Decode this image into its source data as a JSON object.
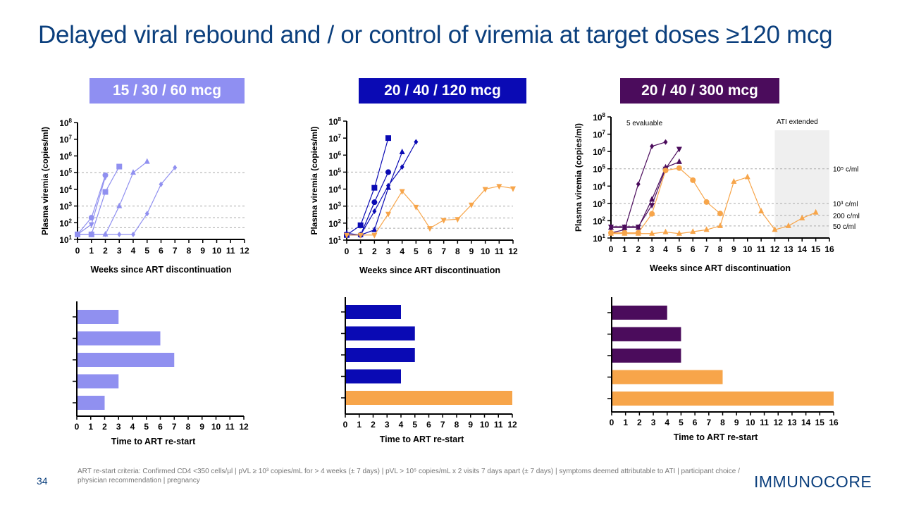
{
  "title": "Delayed viral rebound and / or control of viremia at target doses ≥120 mcg",
  "page_number": "34",
  "footnote": "ART re-start criteria: Confirmed CD4 <350 cells/µl | pVL ≥ 10³ copies/mL for > 4 weeks (± 7 days) | pVL > 10⁵ copies/mL x 2 visits 7 days apart (± 7 days) | symptoms deemed attributable to ATI | participant choice / physician recommendation | pregnancy",
  "logo": "IMMUNOCORE",
  "colors": {
    "low": "#9090f0",
    "mid": "#0a0ab4",
    "high": "#4b0c5c",
    "control": "#f7a54a"
  },
  "chart_data": [
    {
      "type": "line",
      "title": "15 / 30 / 60 mcg",
      "xlabel": "Weeks since ART discontinuation",
      "ylabel": "Plasma viremia (copies/ml)",
      "yscale": "log",
      "ylim": [
        10,
        100000000
      ],
      "xlim": [
        0,
        12
      ],
      "xticks": [
        "0",
        "1",
        "2",
        "3",
        "4",
        "5",
        "6",
        "7",
        "8",
        "9",
        "10",
        "11",
        "12"
      ],
      "yticks": [
        "10¹",
        "10²",
        "10³",
        "10⁴",
        "10⁵",
        "10⁶",
        "10⁷",
        "10⁸"
      ],
      "reference_lines": [
        100000,
        1000,
        200,
        50
      ],
      "series": [
        {
          "marker": "circle",
          "color": "low",
          "x": [
            0,
            1,
            2
          ],
          "y": [
            20,
            200,
            70000
          ]
        },
        {
          "marker": "triangle-down",
          "color": "low",
          "x": [
            0,
            1,
            2
          ],
          "y": [
            20,
            80,
            55000
          ]
        },
        {
          "marker": "square",
          "color": "low",
          "x": [
            0,
            1,
            2,
            3
          ],
          "y": [
            20,
            20,
            7000,
            230000
          ]
        },
        {
          "marker": "triangle",
          "color": "low",
          "x": [
            0,
            1,
            2,
            3,
            4,
            5
          ],
          "y": [
            20,
            20,
            20,
            1000,
            100000,
            450000
          ]
        },
        {
          "marker": "diamond",
          "color": "low",
          "x": [
            0,
            1,
            2,
            3,
            4,
            5,
            6,
            7
          ],
          "y": [
            20,
            20,
            20,
            20,
            20,
            350,
            20000,
            200000
          ]
        }
      ]
    },
    {
      "type": "line",
      "title": "20 / 40 / 120 mcg",
      "xlabel": "Weeks since ART discontinuation",
      "ylabel": "Plasma viremia (copies/ml)",
      "yscale": "log",
      "ylim": [
        10,
        100000000
      ],
      "xlim": [
        0,
        12
      ],
      "xticks": [
        "0",
        "1",
        "2",
        "3",
        "4",
        "5",
        "6",
        "7",
        "8",
        "9",
        "10",
        "11",
        "12"
      ],
      "yticks": [
        "10¹",
        "10²",
        "10³",
        "10⁴",
        "10⁵",
        "10⁶",
        "10⁷",
        "10⁸"
      ],
      "reference_lines": [
        100000,
        1000,
        200,
        50
      ],
      "series": [
        {
          "marker": "square",
          "color": "mid",
          "x": [
            0,
            1,
            2,
            3
          ],
          "y": [
            20,
            75,
            12000,
            10000000
          ]
        },
        {
          "marker": "circle",
          "color": "mid",
          "x": [
            0,
            1,
            2,
            3
          ],
          "y": [
            20,
            20,
            1700,
            100000
          ]
        },
        {
          "marker": "diamond",
          "color": "mid",
          "x": [
            0,
            1,
            2,
            3,
            4,
            5
          ],
          "y": [
            20,
            20,
            500,
            16000,
            200000,
            6000000
          ]
        },
        {
          "marker": "triangle",
          "color": "mid",
          "x": [
            0,
            1,
            2,
            3,
            4
          ],
          "y": [
            25,
            20,
            40,
            12000,
            1500000
          ]
        },
        {
          "marker": "triangle-down",
          "color": "control",
          "x": [
            0,
            1,
            2,
            3,
            4,
            5,
            6,
            7,
            8,
            9,
            10,
            11,
            12
          ],
          "y": [
            20,
            20,
            20,
            350,
            7500,
            900,
            50,
            150,
            170,
            1200,
            10000,
            15000,
            11000
          ]
        }
      ]
    },
    {
      "type": "line",
      "title": "20 / 40 / 300 mcg",
      "xlabel": "Weeks since ART discontinuation",
      "ylabel": "Plasma viremia (copies/ml)",
      "yscale": "log",
      "ylim": [
        10,
        100000000
      ],
      "xlim": [
        0,
        16
      ],
      "xticks": [
        "0",
        "1",
        "2",
        "3",
        "4",
        "5",
        "6",
        "7",
        "8",
        "9",
        "10",
        "11",
        "12",
        "13",
        "14",
        "15",
        "16"
      ],
      "yticks": [
        "10¹",
        "10²",
        "10³",
        "10⁴",
        "10⁵",
        "10⁶",
        "10⁷",
        "10⁸"
      ],
      "reference_lines": [
        100000,
        1000,
        200,
        50
      ],
      "reference_labels": [
        "10⁵ c/ml",
        "10³ c/ml",
        "200 c/ml",
        "50 c/ml"
      ],
      "annotations": [
        "5 evaluable",
        "ATI extended"
      ],
      "shaded_region": [
        12,
        16
      ],
      "series": [
        {
          "marker": "diamond",
          "color": "high",
          "x": [
            0,
            1,
            2,
            3,
            4
          ],
          "y": [
            20,
            30,
            13000,
            2000000,
            3500000
          ]
        },
        {
          "marker": "triangle-down",
          "color": "high",
          "x": [
            0,
            1,
            2,
            3,
            4,
            5
          ],
          "y": [
            45,
            45,
            45,
            800,
            100000,
            1400000
          ]
        },
        {
          "marker": "triangle",
          "color": "high",
          "x": [
            0,
            1,
            2,
            3,
            4,
            5
          ],
          "y": [
            40,
            40,
            40,
            1700,
            120000,
            250000
          ]
        },
        {
          "marker": "circle",
          "color": "control",
          "x": [
            0,
            1,
            2,
            3,
            4,
            5,
            6,
            7,
            8
          ],
          "y": [
            20,
            20,
            20,
            250,
            80000,
            110000,
            22000,
            1200,
            260
          ]
        },
        {
          "marker": "triangle",
          "color": "control",
          "x": [
            0,
            1,
            2,
            3,
            4,
            5,
            6,
            7,
            8,
            9,
            10,
            11,
            12,
            13,
            14,
            15
          ],
          "y": [
            18,
            18,
            18,
            18,
            22,
            18,
            23,
            30,
            50,
            18000,
            33000,
            350,
            30,
            50,
            140,
            300
          ]
        }
      ]
    },
    {
      "type": "bar",
      "orientation": "horizontal",
      "xlabel": "Time to ART re-start",
      "xlim": [
        0,
        12
      ],
      "xticks": [
        "0",
        "1",
        "2",
        "3",
        "4",
        "5",
        "6",
        "7",
        "8",
        "9",
        "10",
        "11",
        "12"
      ],
      "values": [
        3,
        6,
        7,
        3,
        2
      ],
      "colors": [
        "low",
        "low",
        "low",
        "low",
        "low"
      ]
    },
    {
      "type": "bar",
      "orientation": "horizontal",
      "xlabel": "Time to ART re-start",
      "xlim": [
        0,
        12
      ],
      "xticks": [
        "0",
        "1",
        "2",
        "3",
        "4",
        "5",
        "6",
        "7",
        "8",
        "9",
        "10",
        "11",
        "12"
      ],
      "values": [
        4,
        5,
        5,
        4,
        12
      ],
      "colors": [
        "mid",
        "mid",
        "mid",
        "mid",
        "control"
      ]
    },
    {
      "type": "bar",
      "orientation": "horizontal",
      "xlabel": "Time to ART re-start",
      "xlim": [
        0,
        16
      ],
      "xticks": [
        "0",
        "1",
        "2",
        "3",
        "4",
        "5",
        "6",
        "7",
        "8",
        "9",
        "10",
        "11",
        "12",
        "13",
        "14",
        "15",
        "16"
      ],
      "values": [
        4,
        5,
        5,
        8,
        16
      ],
      "colors": [
        "high",
        "high",
        "high",
        "control",
        "control"
      ]
    }
  ]
}
